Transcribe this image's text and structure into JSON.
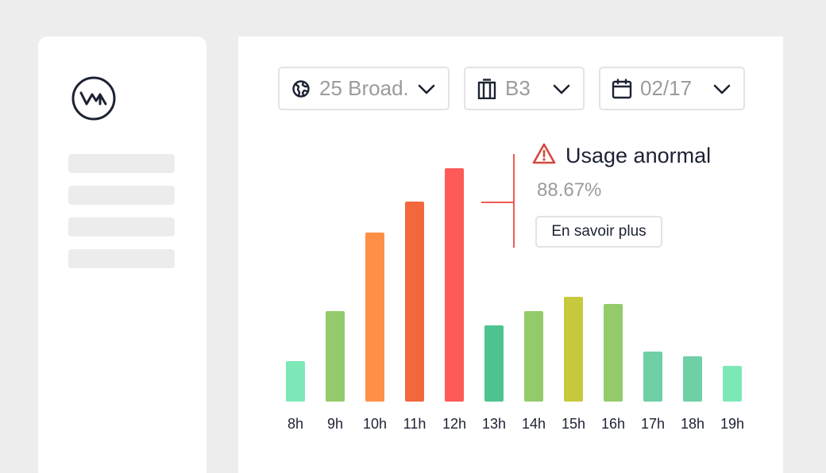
{
  "filters": {
    "building": {
      "value": "25 Broad.",
      "icon": "globe-icon"
    },
    "floor": {
      "value": "B3",
      "icon": "building-icon"
    },
    "date": {
      "value": "02/17",
      "icon": "calendar-icon"
    }
  },
  "alert": {
    "title": "Usage anormal",
    "value": "88.67%",
    "button_label": "En savoir plus",
    "color": "#d24a3e"
  },
  "chart_data": {
    "type": "bar",
    "categories": [
      "8h",
      "9h",
      "10h",
      "11h",
      "12h",
      "13h",
      "14h",
      "15h",
      "16h",
      "17h",
      "18h",
      "19h"
    ],
    "values": [
      17,
      38,
      71,
      84,
      98,
      32,
      38,
      44,
      41,
      21,
      19,
      15
    ],
    "ylim": [
      0,
      100
    ],
    "colors": [
      "#7de8b7",
      "#93cb6b",
      "#ff8f47",
      "#f2683c",
      "#fd5a58",
      "#4dc48f",
      "#93cb6b",
      "#c6c93c",
      "#93cb6b",
      "#6fcfa5",
      "#6fcfa5",
      "#7de8b7"
    ],
    "grid": false,
    "highlight_index": 4
  }
}
